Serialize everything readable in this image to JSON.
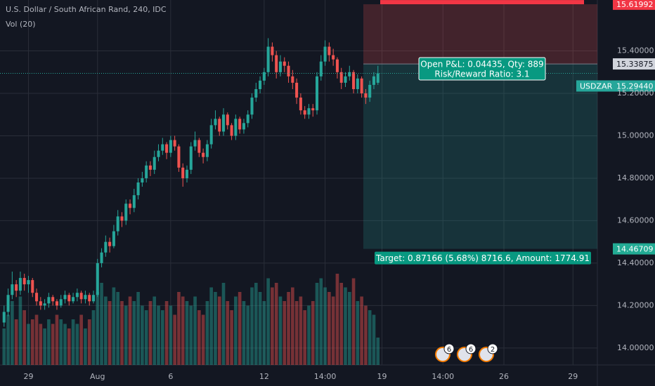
{
  "chart_data": {
    "type": "candlestick",
    "title": "U.S. Dollar / South African Rand, 240, IDC",
    "indicator": "Vol (20)",
    "symbol": "USDZAR",
    "up_color": "#26a69a",
    "down_color": "#ef5350",
    "ylim": [
      13.92,
      15.64
    ],
    "xlim": [
      -1,
      146
    ],
    "yticks": [
      {
        "value": 15.4,
        "label": "15.40000"
      },
      {
        "value": 15.2,
        "label": "15.20000"
      },
      {
        "value": 15.0,
        "label": "15.00000"
      },
      {
        "value": 14.8,
        "label": "14.80000"
      },
      {
        "value": 14.6,
        "label": "14.60000"
      },
      {
        "value": 14.4,
        "label": "14.40000"
      },
      {
        "value": 14.2,
        "label": "14.20000"
      },
      {
        "value": 14.0,
        "label": "14.00000"
      }
    ],
    "xticks": [
      {
        "value": 6,
        "label": "29"
      },
      {
        "value": 23,
        "label": "Aug"
      },
      {
        "value": 41,
        "label": "6"
      },
      {
        "value": 64,
        "label": "12"
      },
      {
        "value": 79,
        "label": "14:00"
      },
      {
        "value": 93,
        "label": "19"
      },
      {
        "value": 108,
        "label": "14:00"
      },
      {
        "value": 123,
        "label": "26"
      },
      {
        "value": 140,
        "label": "29"
      }
    ],
    "grid": true,
    "ohlc": [
      [
        14.12,
        14.2,
        14.1,
        14.17
      ],
      [
        14.17,
        14.28,
        14.15,
        14.25
      ],
      [
        14.25,
        14.36,
        14.23,
        14.3
      ],
      [
        14.3,
        14.32,
        14.24,
        14.27
      ],
      [
        14.27,
        14.36,
        14.25,
        14.33
      ],
      [
        14.33,
        14.35,
        14.27,
        14.3
      ],
      [
        14.3,
        14.34,
        14.26,
        14.32
      ],
      [
        14.32,
        14.33,
        14.24,
        14.26
      ],
      [
        14.26,
        14.28,
        14.2,
        14.22
      ],
      [
        14.22,
        14.24,
        14.18,
        14.2
      ],
      [
        14.2,
        14.23,
        14.18,
        14.21
      ],
      [
        14.21,
        14.26,
        14.19,
        14.24
      ],
      [
        14.24,
        14.25,
        14.2,
        14.22
      ],
      [
        14.22,
        14.23,
        14.18,
        14.2
      ],
      [
        14.2,
        14.25,
        14.19,
        14.23
      ],
      [
        14.23,
        14.27,
        14.21,
        14.25
      ],
      [
        14.25,
        14.26,
        14.2,
        14.22
      ],
      [
        14.22,
        14.26,
        14.21,
        14.24
      ],
      [
        14.24,
        14.28,
        14.22,
        14.26
      ],
      [
        14.26,
        14.27,
        14.21,
        14.23
      ],
      [
        14.23,
        14.27,
        14.21,
        14.25
      ],
      [
        14.25,
        14.26,
        14.2,
        14.22
      ],
      [
        14.22,
        14.27,
        14.21,
        14.25
      ],
      [
        14.25,
        14.42,
        14.24,
        14.4
      ],
      [
        14.4,
        14.47,
        14.38,
        14.45
      ],
      [
        14.45,
        14.53,
        14.43,
        14.5
      ],
      [
        14.5,
        14.52,
        14.45,
        14.48
      ],
      [
        14.48,
        14.58,
        14.47,
        14.55
      ],
      [
        14.55,
        14.65,
        14.53,
        14.62
      ],
      [
        14.62,
        14.64,
        14.57,
        14.6
      ],
      [
        14.6,
        14.7,
        14.58,
        14.68
      ],
      [
        14.68,
        14.7,
        14.63,
        14.66
      ],
      [
        14.66,
        14.75,
        14.64,
        14.72
      ],
      [
        14.72,
        14.8,
        14.7,
        14.78
      ],
      [
        14.78,
        14.83,
        14.76,
        14.8
      ],
      [
        14.8,
        14.88,
        14.78,
        14.86
      ],
      [
        14.86,
        14.88,
        14.81,
        14.84
      ],
      [
        14.84,
        14.93,
        14.82,
        14.9
      ],
      [
        14.9,
        14.96,
        14.88,
        14.93
      ],
      [
        14.93,
        14.99,
        14.91,
        14.96
      ],
      [
        14.96,
        14.97,
        14.89,
        14.92
      ],
      [
        14.92,
        15.0,
        14.9,
        14.98
      ],
      [
        14.98,
        15.0,
        14.93,
        14.95
      ],
      [
        14.95,
        14.96,
        14.83,
        14.85
      ],
      [
        14.85,
        14.87,
        14.76,
        14.8
      ],
      [
        14.8,
        14.86,
        14.78,
        14.84
      ],
      [
        14.84,
        14.97,
        14.82,
        14.95
      ],
      [
        14.95,
        15.02,
        14.93,
        14.98
      ],
      [
        14.98,
        14.99,
        14.9,
        14.92
      ],
      [
        14.92,
        14.94,
        14.87,
        14.9
      ],
      [
        14.9,
        14.98,
        14.88,
        14.96
      ],
      [
        14.96,
        15.08,
        14.94,
        15.05
      ],
      [
        15.05,
        15.12,
        15.03,
        15.08
      ],
      [
        15.08,
        15.09,
        15.0,
        15.02
      ],
      [
        15.02,
        15.13,
        15.0,
        15.1
      ],
      [
        15.1,
        15.11,
        15.03,
        15.05
      ],
      [
        15.05,
        15.06,
        14.98,
        15.0
      ],
      [
        15.0,
        15.1,
        14.98,
        15.08
      ],
      [
        15.08,
        15.09,
        15.01,
        15.03
      ],
      [
        15.03,
        15.08,
        15.01,
        15.06
      ],
      [
        15.06,
        15.12,
        15.04,
        15.1
      ],
      [
        15.1,
        15.2,
        15.08,
        15.18
      ],
      [
        15.18,
        15.25,
        15.16,
        15.22
      ],
      [
        15.22,
        15.28,
        15.2,
        15.26
      ],
      [
        15.26,
        15.32,
        15.24,
        15.3
      ],
      [
        15.3,
        15.46,
        15.28,
        15.42
      ],
      [
        15.42,
        15.44,
        15.35,
        15.38
      ],
      [
        15.38,
        15.4,
        15.27,
        15.3
      ],
      [
        15.3,
        15.38,
        15.28,
        15.35
      ],
      [
        15.35,
        15.37,
        15.3,
        15.33
      ],
      [
        15.33,
        15.35,
        15.25,
        15.28
      ],
      [
        15.28,
        15.31,
        15.22,
        15.25
      ],
      [
        15.25,
        15.27,
        15.15,
        15.18
      ],
      [
        15.18,
        15.2,
        15.1,
        15.12
      ],
      [
        15.12,
        15.14,
        15.08,
        15.1
      ],
      [
        15.1,
        15.15,
        15.08,
        15.13
      ],
      [
        15.13,
        15.15,
        15.09,
        15.12
      ],
      [
        15.12,
        15.3,
        15.1,
        15.28
      ],
      [
        15.28,
        15.38,
        15.26,
        15.35
      ],
      [
        15.35,
        15.45,
        15.33,
        15.42
      ],
      [
        15.42,
        15.44,
        15.35,
        15.38
      ],
      [
        15.38,
        15.41,
        15.33,
        15.36
      ],
      [
        15.36,
        15.37,
        15.27,
        15.3
      ],
      [
        15.3,
        15.32,
        15.22,
        15.25
      ],
      [
        15.25,
        15.3,
        15.23,
        15.28
      ],
      [
        15.28,
        15.33,
        15.26,
        15.3
      ],
      [
        15.3,
        15.31,
        15.2,
        15.22
      ],
      [
        15.22,
        15.29,
        15.2,
        15.27
      ],
      [
        15.27,
        15.28,
        15.18,
        15.2
      ],
      [
        15.2,
        15.22,
        15.15,
        15.18
      ],
      [
        15.18,
        15.26,
        15.16,
        15.24
      ],
      [
        15.24,
        15.3,
        15.22,
        15.28
      ],
      [
        15.25,
        15.33,
        15.24,
        15.2944
      ]
    ],
    "volume": [
      40,
      55,
      70,
      50,
      75,
      60,
      45,
      50,
      55,
      45,
      40,
      50,
      45,
      55,
      50,
      45,
      40,
      50,
      45,
      55,
      40,
      50,
      60,
      80,
      90,
      75,
      70,
      85,
      80,
      70,
      65,
      75,
      70,
      80,
      65,
      60,
      70,
      75,
      65,
      60,
      70,
      65,
      55,
      80,
      75,
      70,
      65,
      75,
      60,
      55,
      70,
      85,
      80,
      75,
      90,
      70,
      60,
      75,
      80,
      70,
      65,
      85,
      90,
      80,
      70,
      95,
      85,
      90,
      75,
      70,
      80,
      85,
      70,
      75,
      60,
      65,
      70,
      90,
      95,
      85,
      80,
      75,
      100,
      90,
      85,
      80,
      95,
      70,
      75,
      65,
      60,
      55,
      30
    ],
    "last_price": {
      "value": 15.2944,
      "label": "15.29440"
    },
    "position": {
      "entry": 15.33875,
      "stop": 15.61992,
      "target": 14.46709,
      "pnl_label": "Open P&L: 0.04435, Qty: 889",
      "ratio_label": "Risk/Reward Ratio: 3.1",
      "target_label": "Target: 0.87166 (5.68%) 8716.6, Amount: 1774.91"
    },
    "events": [
      6,
      6,
      2
    ]
  }
}
